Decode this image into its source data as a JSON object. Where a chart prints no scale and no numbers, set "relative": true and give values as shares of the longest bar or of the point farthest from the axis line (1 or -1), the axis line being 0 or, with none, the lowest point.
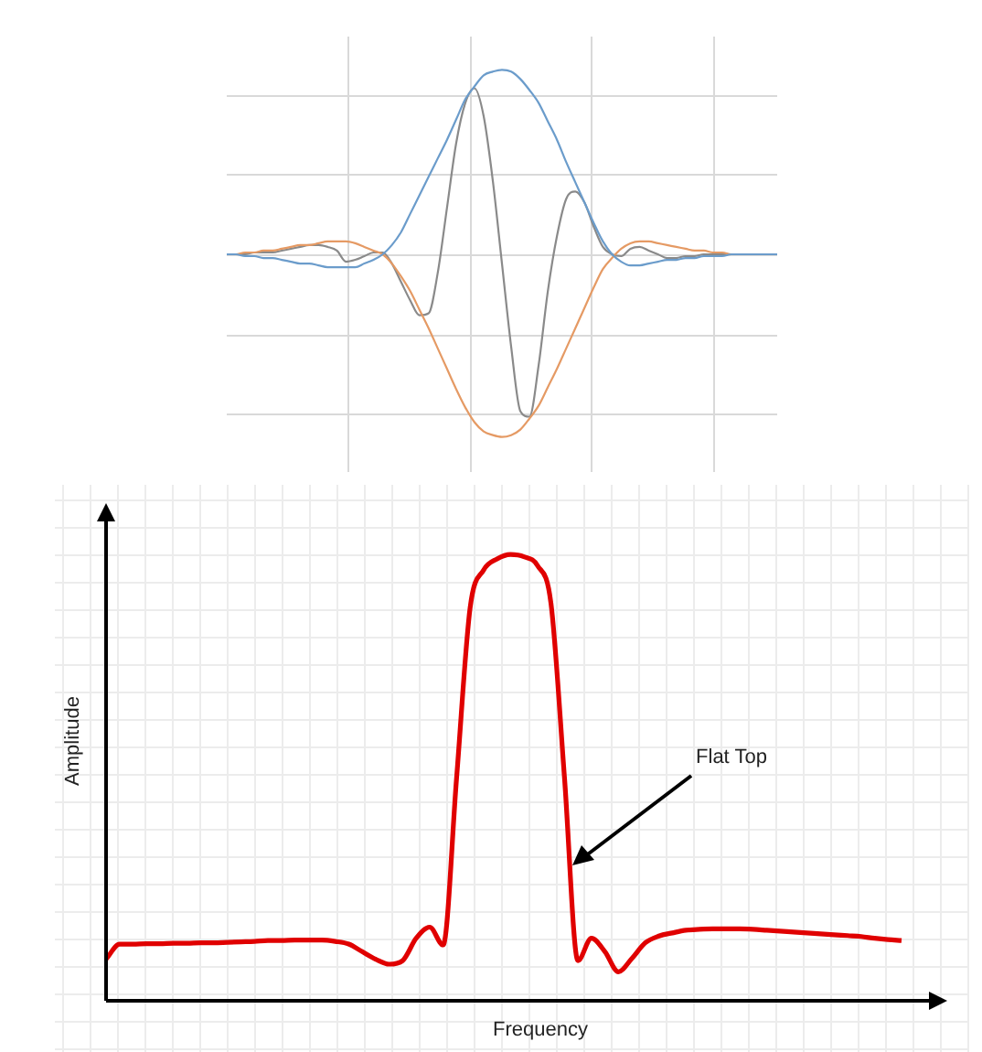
{
  "chart_data": [
    {
      "type": "line",
      "relative": true,
      "grid": true,
      "marker": "none",
      "categories": [
        null,
        null,
        null,
        null,
        null,
        null,
        null,
        null,
        null,
        null,
        null,
        null,
        null,
        null,
        null,
        null,
        null,
        null,
        null,
        null,
        null,
        null,
        null,
        null,
        null,
        null,
        null,
        null,
        null,
        null,
        null,
        null,
        null,
        null,
        null,
        null,
        null,
        null,
        null,
        null,
        null,
        null,
        null,
        null,
        null,
        null,
        null,
        null,
        null,
        null,
        null,
        null,
        null,
        null,
        null,
        null,
        null,
        null,
        null,
        null,
        null
      ],
      "series": [
        {
          "color": "#6b9ccb",
          "values": [
            0,
            0,
            -0.01,
            -0.01,
            -0.02,
            -0.02,
            -0.03,
            -0.04,
            -0.05,
            -0.05,
            -0.06,
            -0.07,
            -0.07,
            -0.07,
            -0.07,
            -0.05,
            -0.03,
            0,
            0.05,
            0.12,
            0.22,
            0.32,
            0.42,
            0.52,
            0.62,
            0.73,
            0.84,
            0.91,
            0.97,
            0.99,
            1,
            0.99,
            0.95,
            0.89,
            0.82,
            0.72,
            0.62,
            0.5,
            0.39,
            0.28,
            0.17,
            0.07,
            0,
            -0.04,
            -0.06,
            -0.06,
            -0.05,
            -0.04,
            -0.03,
            -0.03,
            -0.02,
            -0.02,
            -0.01,
            -0.01,
            -0.01,
            0,
            0,
            0,
            0,
            0,
            0
          ]
        },
        {
          "color": "#e59a64",
          "values": [
            0,
            0,
            0.01,
            0.01,
            0.02,
            0.02,
            0.03,
            0.04,
            0.05,
            0.05,
            0.06,
            0.07,
            0.07,
            0.07,
            0.06,
            0.04,
            0.02,
            0,
            -0.05,
            -0.12,
            -0.2,
            -0.3,
            -0.4,
            -0.51,
            -0.62,
            -0.73,
            -0.83,
            -0.91,
            -0.96,
            -0.98,
            -0.99,
            -0.98,
            -0.95,
            -0.89,
            -0.82,
            -0.72,
            -0.62,
            -0.51,
            -0.4,
            -0.29,
            -0.18,
            -0.08,
            -0.02,
            0.03,
            0.06,
            0.07,
            0.07,
            0.06,
            0.05,
            0.04,
            0.03,
            0.02,
            0.02,
            0.01,
            0.01,
            0,
            0,
            null,
            null,
            null,
            null
          ]
        },
        {
          "color": "#8a8a8a",
          "values": [
            0,
            0,
            0,
            0.01,
            0.01,
            0.01,
            0.02,
            0.03,
            0.04,
            0.05,
            0.05,
            0.04,
            0.02,
            -0.04,
            -0.03,
            -0.01,
            0.01,
            0.01,
            -0.05,
            -0.15,
            -0.25,
            -0.33,
            -0.32,
            -0.1,
            0.25,
            0.6,
            0.82,
            0.9,
            0.75,
            0.4,
            -0.05,
            -0.5,
            -0.85,
            -0.88,
            -0.6,
            -0.2,
            0.1,
            0.3,
            0.34,
            0.28,
            0.15,
            0.04,
            0,
            -0.01,
            0.03,
            0.04,
            0.02,
            0,
            -0.02,
            -0.02,
            -0.01,
            -0.01,
            0,
            0,
            0,
            0,
            0,
            null,
            null,
            null,
            null
          ]
        }
      ]
    },
    {
      "type": "line",
      "relative": true,
      "grid": true,
      "marker": "none",
      "xlabel": "Frequency",
      "ylabel": "Amplitude",
      "annotations": [
        "Flat Top"
      ],
      "categories": [
        null,
        null,
        null,
        null,
        null,
        null,
        null,
        null,
        null,
        null,
        null,
        null,
        null,
        null,
        null,
        null,
        null,
        null,
        null,
        null,
        null,
        null,
        null,
        null,
        null,
        null,
        null,
        null,
        null,
        null,
        null,
        null,
        null,
        null,
        null,
        null,
        null,
        null,
        null,
        null,
        null,
        null,
        null,
        null,
        null,
        null,
        null,
        null,
        null,
        null,
        null,
        null,
        null,
        null,
        null,
        null,
        null,
        null,
        null,
        null
      ],
      "series": [
        {
          "color": "#e00000",
          "values": [
            0.093,
            0.127,
            0.127,
            0.128,
            0.128,
            0.129,
            0.129,
            0.13,
            0.13,
            0.131,
            0.132,
            0.133,
            0.135,
            0.135,
            0.136,
            0.136,
            0.136,
            0.133,
            0.127,
            0.11,
            0.093,
            0.082,
            0.09,
            0.14,
            0.165,
            0.125,
            0.5,
            0.88,
            0.965,
            0.99,
            1,
            0.995,
            0.975,
            0.89,
            0.5,
            0.09,
            0.14,
            0.11,
            0.065,
            0.095,
            0.13,
            0.145,
            0.152,
            0.158,
            0.16,
            0.161,
            0.161,
            0.161,
            0.16,
            0.158,
            0.156,
            0.154,
            0.152,
            0.15,
            0.148,
            0.146,
            0.144,
            0.14,
            0.137,
            0.135
          ]
        }
      ]
    }
  ]
}
